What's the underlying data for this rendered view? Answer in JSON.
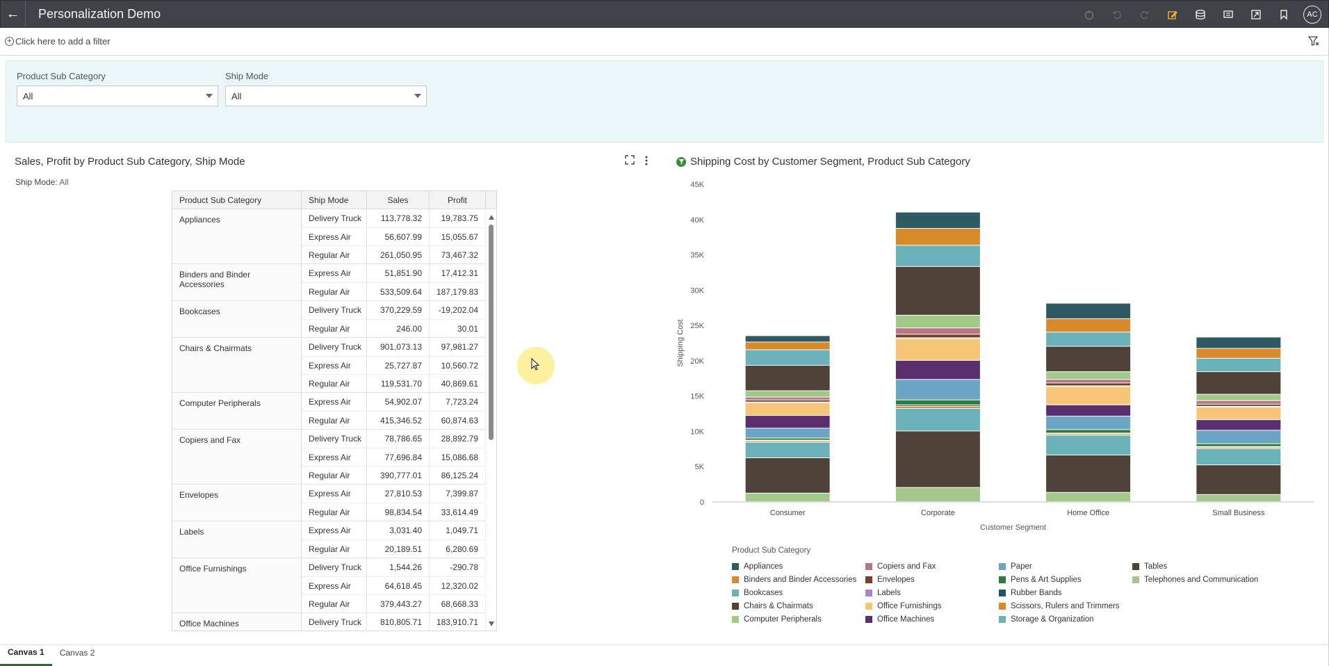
{
  "app": {
    "title": "Personalization Demo",
    "back_label": "←",
    "avatar": "AC"
  },
  "toolbar": {
    "icons": [
      "refresh-icon",
      "undo-icon",
      "redo-icon",
      "edit-icon",
      "data-icon",
      "comment-icon",
      "present-icon",
      "bookmark-icon"
    ]
  },
  "filter_bar": {
    "add_filter": "Click here to add a filter"
  },
  "params": [
    {
      "label": "Product Sub Category",
      "value": "All"
    },
    {
      "label": "Ship Mode",
      "value": "All"
    }
  ],
  "table_viz": {
    "title": "Sales, Profit by Product Sub Category, Ship Mode",
    "subtitle_key": "Ship Mode:",
    "subtitle_value": "All",
    "columns": [
      "Product Sub Category",
      "Ship Mode",
      "Sales",
      "Profit"
    ],
    "groups": [
      {
        "category": "Appliances",
        "rows": [
          {
            "mode": "Delivery Truck",
            "sales": "113,778.32",
            "profit": "19,783.75"
          },
          {
            "mode": "Express Air",
            "sales": "56,607.99",
            "profit": "15,055.67"
          },
          {
            "mode": "Regular Air",
            "sales": "261,050.95",
            "profit": "73,467.32"
          }
        ]
      },
      {
        "category": "Binders and Binder Accessories",
        "rows": [
          {
            "mode": "Express Air",
            "sales": "51,851.90",
            "profit": "17,412.31"
          },
          {
            "mode": "Regular Air",
            "sales": "533,509.64",
            "profit": "187,179.83"
          }
        ]
      },
      {
        "category": "Bookcases",
        "rows": [
          {
            "mode": "Delivery Truck",
            "sales": "370,229.59",
            "profit": "-19,202.04"
          },
          {
            "mode": "Regular Air",
            "sales": "246.00",
            "profit": "30.01"
          }
        ]
      },
      {
        "category": "Chairs & Chairmats",
        "rows": [
          {
            "mode": "Delivery Truck",
            "sales": "901,073.13",
            "profit": "97,981.27"
          },
          {
            "mode": "Express Air",
            "sales": "25,727.87",
            "profit": "10,560.72"
          },
          {
            "mode": "Regular Air",
            "sales": "119,531.70",
            "profit": "40,869.61"
          }
        ]
      },
      {
        "category": "Computer Peripherals",
        "rows": [
          {
            "mode": "Express Air",
            "sales": "54,902.07",
            "profit": "7,723.24"
          },
          {
            "mode": "Regular Air",
            "sales": "415,346.52",
            "profit": "60,874.63"
          }
        ]
      },
      {
        "category": "Copiers and Fax",
        "rows": [
          {
            "mode": "Delivery Truck",
            "sales": "78,786.65",
            "profit": "28,892.79"
          },
          {
            "mode": "Express Air",
            "sales": "77,696.84",
            "profit": "15,086.68"
          },
          {
            "mode": "Regular Air",
            "sales": "390,777.01",
            "profit": "86,125.24"
          }
        ]
      },
      {
        "category": "Envelopes",
        "rows": [
          {
            "mode": "Express Air",
            "sales": "27,810.53",
            "profit": "7,399.87"
          },
          {
            "mode": "Regular Air",
            "sales": "98,834.54",
            "profit": "33,614.49"
          }
        ]
      },
      {
        "category": "Labels",
        "rows": [
          {
            "mode": "Express Air",
            "sales": "3,031.40",
            "profit": "1,049.71"
          },
          {
            "mode": "Regular Air",
            "sales": "20,189.51",
            "profit": "6,280.69"
          }
        ]
      },
      {
        "category": "Office Furnishings",
        "rows": [
          {
            "mode": "Delivery Truck",
            "sales": "1,544.26",
            "profit": "-290.78"
          },
          {
            "mode": "Express Air",
            "sales": "64,618.45",
            "profit": "12,320.02"
          },
          {
            "mode": "Regular Air",
            "sales": "379,443.27",
            "profit": "68,668.33"
          }
        ]
      },
      {
        "category": "Office Machines",
        "rows": [
          {
            "mode": "Delivery Truck",
            "sales": "810,805.71",
            "profit": "183,910.71"
          }
        ]
      }
    ]
  },
  "chart_data": {
    "type": "bar",
    "stacked": true,
    "title": "Shipping Cost by Customer Segment, Product Sub Category",
    "xlabel": "Customer Segment",
    "ylabel": "Shipping Cost",
    "ylim": [
      0,
      45000
    ],
    "yticks": [
      "0",
      "5K",
      "10K",
      "15K",
      "20K",
      "25K",
      "30K",
      "35K",
      "40K",
      "45K"
    ],
    "grid": false,
    "legend_title": "Product Sub Category",
    "legend_position": "bottom",
    "categories": [
      "Consumer",
      "Corporate",
      "Home Office",
      "Small Business"
    ],
    "series": [
      {
        "name": "Telephones and Communication",
        "color": "#a3c98a",
        "values": [
          1200,
          2000,
          1300,
          1000
        ]
      },
      {
        "name": "Tables",
        "color": "#4e4239",
        "values": [
          5000,
          8000,
          5300,
          4200
        ]
      },
      {
        "name": "Storage & Organization",
        "color": "#6bb1b9",
        "values": [
          2200,
          3200,
          2800,
          2300
        ]
      },
      {
        "name": "Scissors, Rulers and Trimmers",
        "color": "#d98a2b",
        "values": [
          200,
          300,
          200,
          200
        ]
      },
      {
        "name": "Rubber Bands",
        "color": "#1f5563",
        "values": [
          100,
          200,
          100,
          100
        ]
      },
      {
        "name": "Pens & Art Supplies",
        "color": "#2f7a3e",
        "values": [
          300,
          700,
          500,
          400
        ]
      },
      {
        "name": "Paper",
        "color": "#6aa6c4",
        "values": [
          1400,
          2900,
          1900,
          1900
        ]
      },
      {
        "name": "Office Machines",
        "color": "#5a2d6e",
        "values": [
          1800,
          2700,
          1600,
          1500
        ]
      },
      {
        "name": "Office Furnishings",
        "color": "#f6c577",
        "values": [
          1800,
          3100,
          2600,
          1800
        ]
      },
      {
        "name": "Labels",
        "color": "#a883c8",
        "values": [
          100,
          100,
          100,
          100
        ]
      },
      {
        "name": "Envelopes",
        "color": "#7a3e2e",
        "values": [
          300,
          500,
          400,
          300
        ]
      },
      {
        "name": "Copiers and Fax",
        "color": "#b57785",
        "values": [
          400,
          900,
          500,
          500
        ]
      },
      {
        "name": "Computer Peripherals",
        "color": "#a3c98a",
        "values": [
          900,
          1800,
          1100,
          900
        ]
      },
      {
        "name": "Chairs & Chairmats",
        "color": "#4e4239",
        "values": [
          3600,
          6900,
          3600,
          3200
        ]
      },
      {
        "name": "Bookcases",
        "color": "#6bb1b9",
        "values": [
          2200,
          3000,
          2000,
          1900
        ]
      },
      {
        "name": "Binders and Binder Accessories",
        "color": "#d98a2b",
        "values": [
          1100,
          2400,
          1900,
          1400
        ]
      },
      {
        "name": "Appliances",
        "color": "#2f5a63",
        "values": [
          900,
          2300,
          2200,
          1600
        ]
      }
    ]
  },
  "legend_items": [
    {
      "name": "Appliances",
      "color": "#2f5a63"
    },
    {
      "name": "Binders and Binder Accessories",
      "color": "#d98a2b"
    },
    {
      "name": "Bookcases",
      "color": "#6bb1b9"
    },
    {
      "name": "Chairs & Chairmats",
      "color": "#4e4239"
    },
    {
      "name": "Computer Peripherals",
      "color": "#a3c98a"
    },
    {
      "name": "Copiers and Fax",
      "color": "#b57785"
    },
    {
      "name": "Envelopes",
      "color": "#7a3e2e"
    },
    {
      "name": "Labels",
      "color": "#a883c8"
    },
    {
      "name": "Office Furnishings",
      "color": "#f6c577"
    },
    {
      "name": "Office Machines",
      "color": "#5a2d6e"
    },
    {
      "name": "Paper",
      "color": "#6aa6c4"
    },
    {
      "name": "Pens & Art Supplies",
      "color": "#2f7a3e"
    },
    {
      "name": "Rubber Bands",
      "color": "#1f5563"
    },
    {
      "name": "Scissors, Rulers and Trimmers",
      "color": "#d98a2b"
    },
    {
      "name": "Storage & Organization",
      "color": "#6bb1b9"
    },
    {
      "name": "Tables",
      "color": "#4e4239"
    },
    {
      "name": "Telephones and Communication",
      "color": "#a3c98a"
    }
  ],
  "canvas_tabs": [
    {
      "label": "Canvas 1",
      "active": true
    },
    {
      "label": "Canvas 2",
      "active": false
    }
  ]
}
